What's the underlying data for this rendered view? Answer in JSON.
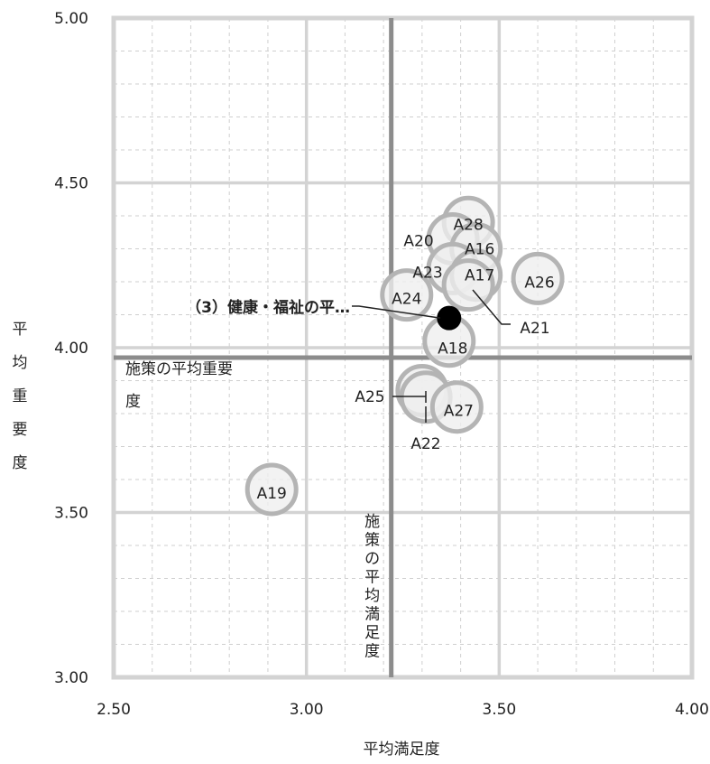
{
  "chart_data": {
    "type": "scatter",
    "xlabel": "平均満足度",
    "ylabel": "平均重要度",
    "xlim": [
      2.5,
      4.0
    ],
    "ylim": [
      3.0,
      5.0
    ],
    "xticks": [
      "2.50",
      "3.00",
      "3.50",
      "4.00"
    ],
    "yticks": [
      "3.00",
      "3.50",
      "4.00",
      "4.50",
      "5.00"
    ],
    "grid": true,
    "reference_lines": {
      "vertical": {
        "value": 3.22,
        "label": "施策の平均満足度"
      },
      "horizontal": {
        "value": 3.97,
        "label": "施策の平均重要度"
      }
    },
    "points": [
      {
        "label": "A28",
        "x": 3.42,
        "y": 4.38
      },
      {
        "label": "A20",
        "x": 3.38,
        "y": 4.33
      },
      {
        "label": "A16",
        "x": 3.44,
        "y": 4.3
      },
      {
        "label": "A23",
        "x": 3.38,
        "y": 4.24
      },
      {
        "label": "A17",
        "x": 3.44,
        "y": 4.22
      },
      {
        "label": "A21",
        "x": 3.42,
        "y": 4.19
      },
      {
        "label": "A26",
        "x": 3.6,
        "y": 4.21
      },
      {
        "label": "A24",
        "x": 3.26,
        "y": 4.16
      },
      {
        "label": "A18",
        "x": 3.37,
        "y": 4.02
      },
      {
        "label": "A25",
        "x": 3.3,
        "y": 3.87
      },
      {
        "label": "A22",
        "x": 3.31,
        "y": 3.85
      },
      {
        "label": "A27",
        "x": 3.39,
        "y": 3.82
      },
      {
        "label": "A19",
        "x": 2.91,
        "y": 3.57
      }
    ],
    "highlight": {
      "label": "（3）健康・福祉の平…",
      "x": 3.37,
      "y": 4.09
    }
  }
}
